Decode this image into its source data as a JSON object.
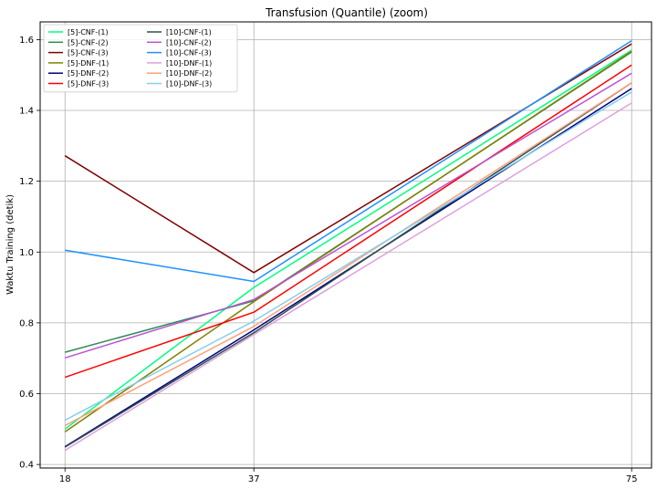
{
  "chart_data": {
    "type": "line",
    "title": "Transfusion (Quantile) (zoom)",
    "xlabel": "",
    "ylabel": "Waktu Training (detik)",
    "x": [
      18,
      37,
      75
    ],
    "xticks": [
      "18",
      "37",
      "75"
    ],
    "yticks": [
      "0.4",
      "0.6",
      "0.8",
      "1.0",
      "1.2",
      "1.4",
      "1.6"
    ],
    "ylim": [
      0.39,
      1.65
    ],
    "grid": true,
    "legend_position": "top-left",
    "legend_columns": 2,
    "series": [
      {
        "name": "[5]-CNF-(1)",
        "color": "#00ff7f",
        "values": [
          0.5,
          0.9,
          1.57
        ]
      },
      {
        "name": "[5]-CNF-(2)",
        "color": "#2e8b57",
        "values": [
          0.717,
          0.862,
          1.565
        ]
      },
      {
        "name": "[5]-CNF-(3)",
        "color": "#800000",
        "values": [
          1.272,
          0.942,
          1.588
        ]
      },
      {
        "name": "[5]-DNF-(1)",
        "color": "#808000",
        "values": [
          0.492,
          0.86,
          1.567
        ]
      },
      {
        "name": "[5]-DNF-(2)",
        "color": "#000080",
        "values": [
          0.45,
          0.78,
          1.462
        ]
      },
      {
        "name": "[5]-DNF-(3)",
        "color": "#ff0000",
        "values": [
          0.646,
          0.83,
          1.528
        ]
      },
      {
        "name": "[10]-CNF-(1)",
        "color": "#2f4f4f",
        "values": [
          0.449,
          0.772,
          1.478
        ]
      },
      {
        "name": "[10]-CNF-(2)",
        "color": "#ba55d3",
        "values": [
          0.701,
          0.866,
          1.505
        ]
      },
      {
        "name": "[10]-CNF-(3)",
        "color": "#1e90ff",
        "values": [
          1.005,
          0.917,
          1.597
        ]
      },
      {
        "name": "[10]-DNF-(1)",
        "color": "#dda0dd",
        "values": [
          0.44,
          0.767,
          1.421
        ]
      },
      {
        "name": "[10]-DNF-(2)",
        "color": "#ffa07a",
        "values": [
          0.51,
          0.79,
          1.478
        ]
      },
      {
        "name": "[10]-DNF-(3)",
        "color": "#87ceeb",
        "values": [
          0.525,
          0.805,
          1.452
        ]
      }
    ]
  }
}
